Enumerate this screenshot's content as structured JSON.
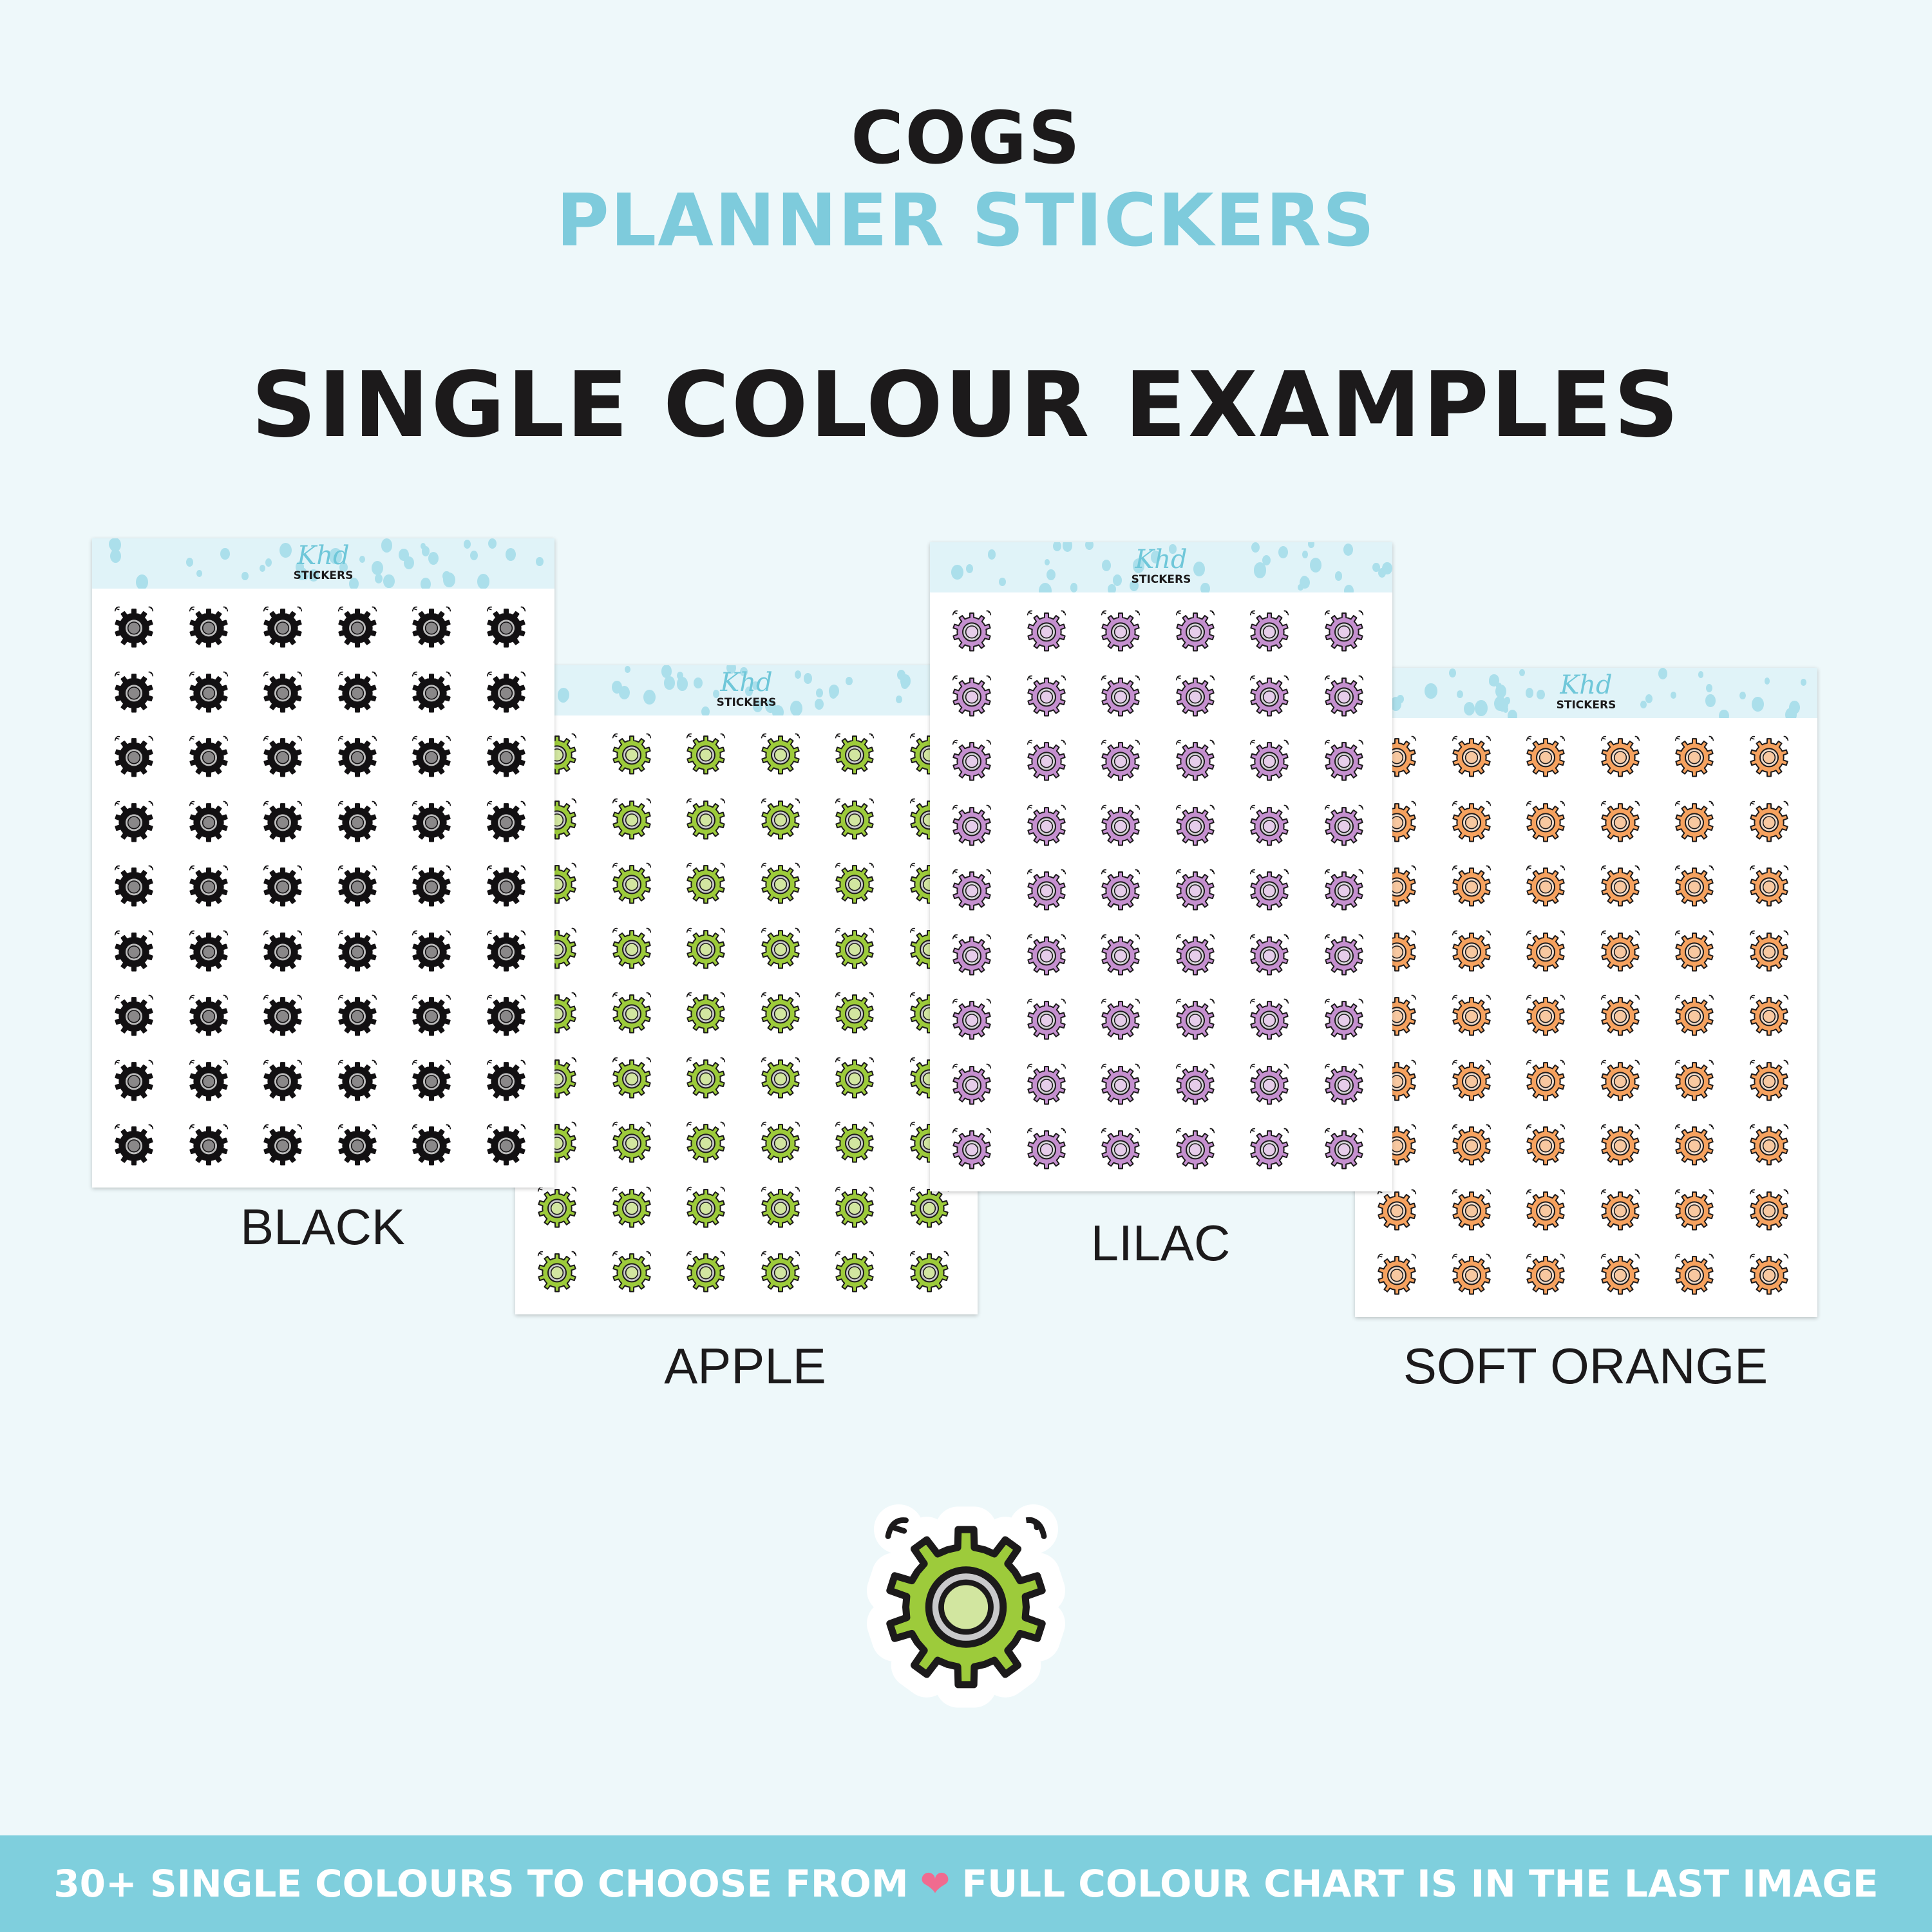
{
  "header": {
    "title": "COGS",
    "subtitle": "PLANNER STICKERS",
    "heading": "SINGLE COLOUR EXAMPLES"
  },
  "logo": {
    "script": "Khd",
    "text": "STICKERS"
  },
  "sheets": [
    {
      "id": "black",
      "label": "BLACK",
      "colors": {
        "body": "#121012",
        "ring": "#bdbdbd",
        "center": "#8a8889",
        "stroke": "#121012"
      },
      "rows": 9,
      "cols": 6
    },
    {
      "id": "apple",
      "label": "APPLE",
      "colors": {
        "body": "#9dcb3b",
        "ring": "#c9c9cb",
        "center": "#d2e6a0",
        "stroke": "#1c1a1b"
      },
      "rows": 9,
      "cols": 6
    },
    {
      "id": "lilac",
      "label": "LILAC",
      "colors": {
        "body": "#c590cf",
        "ring": "#d3d3d6",
        "center": "#e6cdea",
        "stroke": "#1c1a1b"
      },
      "rows": 9,
      "cols": 6
    },
    {
      "id": "soft-orange",
      "label": "SOFT ORANGE",
      "colors": {
        "body": "#f6a25f",
        "ring": "#f0dccb",
        "center": "#f8c8a0",
        "stroke": "#1c1a1b"
      },
      "rows": 9,
      "cols": 6
    }
  ],
  "featured_cog": {
    "colors": {
      "body": "#9dcb3b",
      "ring": "#c9c9cb",
      "center": "#d2e6a0",
      "stroke": "#1c1a1b"
    }
  },
  "banner": {
    "left_text": "30+ SINGLE COLOURS TO CHOOSE FROM",
    "icon": "two-hearts-icon",
    "right_text": "FULL COLOUR CHART IS IN THE LAST IMAGE"
  },
  "colors": {
    "background": "#eef8fa",
    "accent": "#7ecbdc",
    "banner": "#7fcfdd",
    "text": "#1c1a1b"
  }
}
